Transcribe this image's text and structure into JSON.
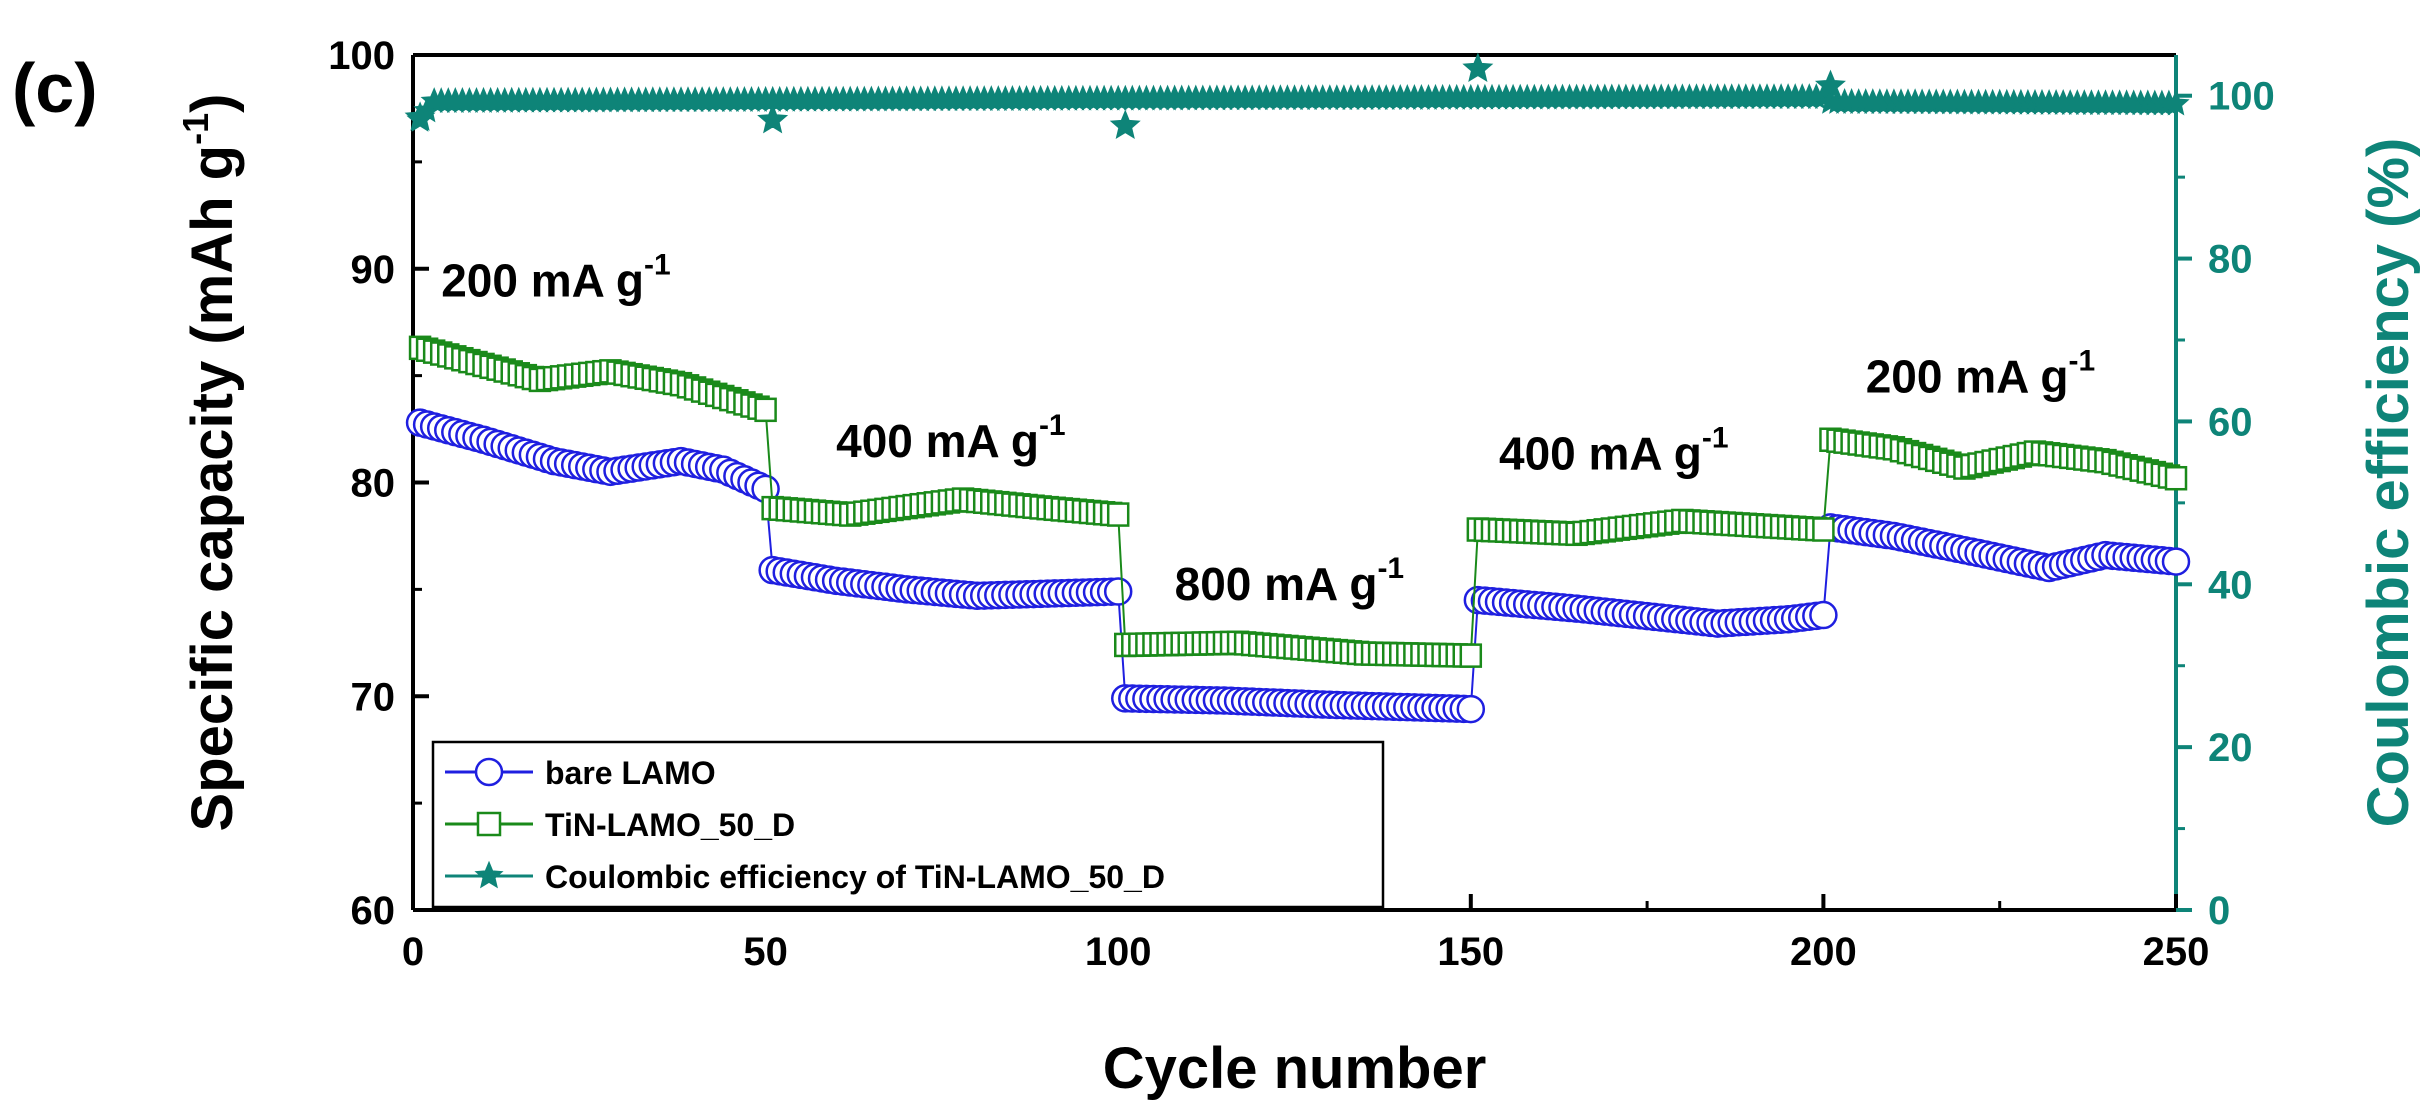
{
  "panel_label": "(c)",
  "chart_data": {
    "type": "line",
    "xlabel": "Cycle number",
    "ylabel": "Specific capacity (mAh g",
    "ylabel_sup": "-1",
    "ylabel_close": ")",
    "y2label": "Coulombic efficiency (%)",
    "xlim": [
      0,
      250
    ],
    "ylim": [
      60,
      100
    ],
    "y2lim": [
      0,
      105
    ],
    "x_ticks": [
      0,
      50,
      100,
      150,
      200,
      250
    ],
    "y_ticks": [
      60,
      70,
      80,
      90,
      100
    ],
    "y2_ticks": [
      0,
      20,
      40,
      60,
      80,
      100
    ],
    "grid": false,
    "legend_position": "bottom-left",
    "colors": {
      "bare": "#1f1fe0",
      "tin": "#1a8a1a",
      "ce": "#0e8478",
      "axis": "#000000"
    },
    "annotations": [
      {
        "text": "200 mA g",
        "sup": "-1",
        "x": 4,
        "y": 88.7
      },
      {
        "text": "400 mA g",
        "sup": "-1",
        "x": 60,
        "y": 81.2
      },
      {
        "text": "800 mA g",
        "sup": "-1",
        "x": 108,
        "y": 74.5
      },
      {
        "text": "400 mA g",
        "sup": "-1",
        "x": 154,
        "y": 80.6
      },
      {
        "text": "200 mA g",
        "sup": "-1",
        "x": 206,
        "y": 84.2
      }
    ],
    "series": [
      {
        "name": "bare LAMO",
        "axis": "left",
        "marker": "circle",
        "segments": [
          {
            "x_start": 1,
            "x_end": 50,
            "key_x": [
              1,
              10,
              20,
              28,
              38,
              44,
              50
            ],
            "key_y": [
              82.8,
              82.0,
              81.0,
              80.5,
              81.0,
              80.6,
              79.7
            ]
          },
          {
            "x_start": 51,
            "x_end": 100,
            "key_x": [
              51,
              60,
              70,
              80,
              90,
              100
            ],
            "key_y": [
              75.9,
              75.4,
              75.0,
              74.7,
              74.8,
              74.9
            ]
          },
          {
            "x_start": 101,
            "x_end": 150,
            "key_x": [
              101,
              115,
              130,
              150
            ],
            "key_y": [
              69.9,
              69.8,
              69.6,
              69.4
            ]
          },
          {
            "x_start": 151,
            "x_end": 200,
            "key_x": [
              151,
              165,
              185,
              195,
              200
            ],
            "key_y": [
              74.5,
              74.1,
              73.4,
              73.6,
              73.8
            ]
          },
          {
            "x_start": 201,
            "x_end": 250,
            "key_x": [
              201,
              210,
              222,
              232,
              240,
              250
            ],
            "key_y": [
              77.9,
              77.5,
              76.7,
              76.0,
              76.6,
              76.3
            ]
          }
        ]
      },
      {
        "name": "TiN-LAMO_50_D",
        "axis": "left",
        "marker": "square",
        "segments": [
          {
            "x_start": 1,
            "x_end": 50,
            "key_x": [
              1,
              10,
              18,
              28,
              38,
              45,
              50
            ],
            "key_y": [
              86.3,
              85.5,
              84.8,
              85.2,
              84.6,
              83.9,
              83.4
            ]
          },
          {
            "x_start": 51,
            "x_end": 100,
            "key_x": [
              51,
              62,
              78,
              90,
              100
            ],
            "key_y": [
              78.8,
              78.5,
              79.2,
              78.8,
              78.5
            ]
          },
          {
            "x_start": 101,
            "x_end": 150,
            "key_x": [
              101,
              117,
              135,
              150
            ],
            "key_y": [
              72.4,
              72.5,
              72.0,
              71.9
            ]
          },
          {
            "x_start": 151,
            "x_end": 200,
            "key_x": [
              151,
              165,
              180,
              190,
              200
            ],
            "key_y": [
              77.8,
              77.6,
              78.2,
              78.0,
              77.8
            ]
          },
          {
            "x_start": 201,
            "x_end": 250,
            "key_x": [
              201,
              210,
              220,
              230,
              240,
              250
            ],
            "key_y": [
              82.0,
              81.6,
              80.7,
              81.4,
              81.0,
              80.2
            ]
          }
        ]
      },
      {
        "name": "Coulombic efficiency of TiN-LAMO_50_D",
        "axis": "right",
        "marker": "star",
        "segments": [
          {
            "x_start": 1,
            "x_end": 250,
            "key_x": [
              1,
              3,
              100,
              200,
              201,
              250
            ],
            "key_y": [
              97.0,
              99.3,
              99.6,
              99.8,
              99.2,
              99.0
            ]
          }
        ],
        "outliers": [
          {
            "x": 1,
            "y": 97.3
          },
          {
            "x": 51,
            "y": 97.0
          },
          {
            "x": 101,
            "y": 96.3
          },
          {
            "x": 151,
            "y": 103.3
          },
          {
            "x": 201,
            "y": 101.2
          }
        ]
      }
    ]
  }
}
